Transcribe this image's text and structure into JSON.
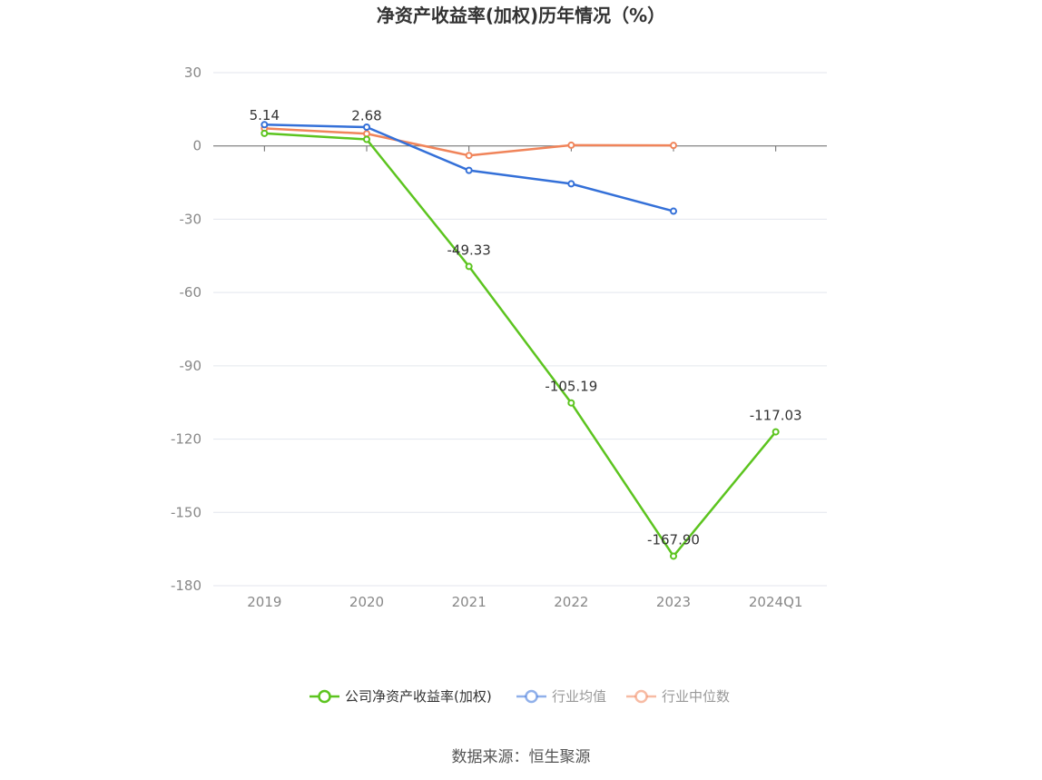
{
  "chart_data": {
    "type": "line",
    "title": "净资产收益率(加权)历年情况（%）",
    "categories": [
      "2019",
      "2020",
      "2021",
      "2022",
      "2023",
      "2024Q1"
    ],
    "ylim": [
      -180,
      30
    ],
    "yticks": [
      30,
      0,
      -30,
      -60,
      -90,
      -120,
      -150,
      -180
    ],
    "grid": true,
    "legend_position": "bottom",
    "series": [
      {
        "name": "公司净资产收益率(加权)",
        "color": "#5cc41f",
        "values": [
          5.14,
          2.68,
          -49.33,
          -105.19,
          -167.9,
          -117.03
        ],
        "labels": [
          "5.14",
          "2.68",
          "-49.33",
          "-105.19",
          "-167.90",
          "-117.03"
        ]
      },
      {
        "name": "行业均值",
        "color": "#3470d8",
        "values": [
          8.7,
          7.7,
          -10.0,
          -15.5,
          -26.7,
          null
        ]
      },
      {
        "name": "行业中位数",
        "color": "#f0845a",
        "values": [
          7.2,
          5.0,
          -3.9,
          0.3,
          0.2,
          null
        ]
      }
    ]
  },
  "source_text": "数据来源：恒生聚源"
}
